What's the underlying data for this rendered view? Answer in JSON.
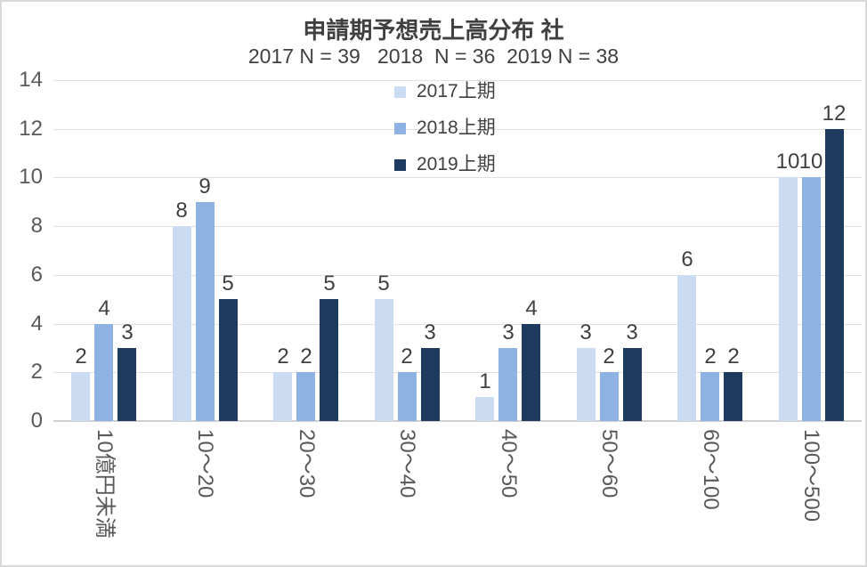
{
  "chart_data": {
    "type": "bar",
    "title": "申請期予想売上高分布 社",
    "subtitle": "2017 N = 39   2018  N = 36  2019 N = 38",
    "categories": [
      "10億円未満",
      "10～20",
      "20～30",
      "30～40",
      "40～50",
      "50～60",
      "60～100",
      "100～500"
    ],
    "series": [
      {
        "name": "2017上期",
        "color": "#cbdcf2",
        "values": [
          2,
          8,
          2,
          5,
          1,
          3,
          6,
          10
        ]
      },
      {
        "name": "2018上期",
        "color": "#8eb3e2",
        "values": [
          4,
          9,
          2,
          2,
          3,
          2,
          2,
          10
        ]
      },
      {
        "name": "2019上期",
        "color": "#1f3a5f",
        "values": [
          3,
          5,
          5,
          3,
          4,
          3,
          2,
          12
        ]
      }
    ],
    "xlabel": "",
    "ylabel": "",
    "ylim": [
      0,
      14
    ],
    "yticks": [
      0,
      2,
      4,
      6,
      8,
      10,
      12,
      14
    ],
    "grid": true,
    "legend_position": "top-center-overlay",
    "value_labels": true
  },
  "colors": {
    "background": "#ffffff",
    "border": "#d9d9d9",
    "gridline": "#e0e0e0",
    "axis_line": "#cfcfcf",
    "title_text": "#404040",
    "axis_text": "#595959",
    "value_label_text": "#3f3f3f"
  }
}
